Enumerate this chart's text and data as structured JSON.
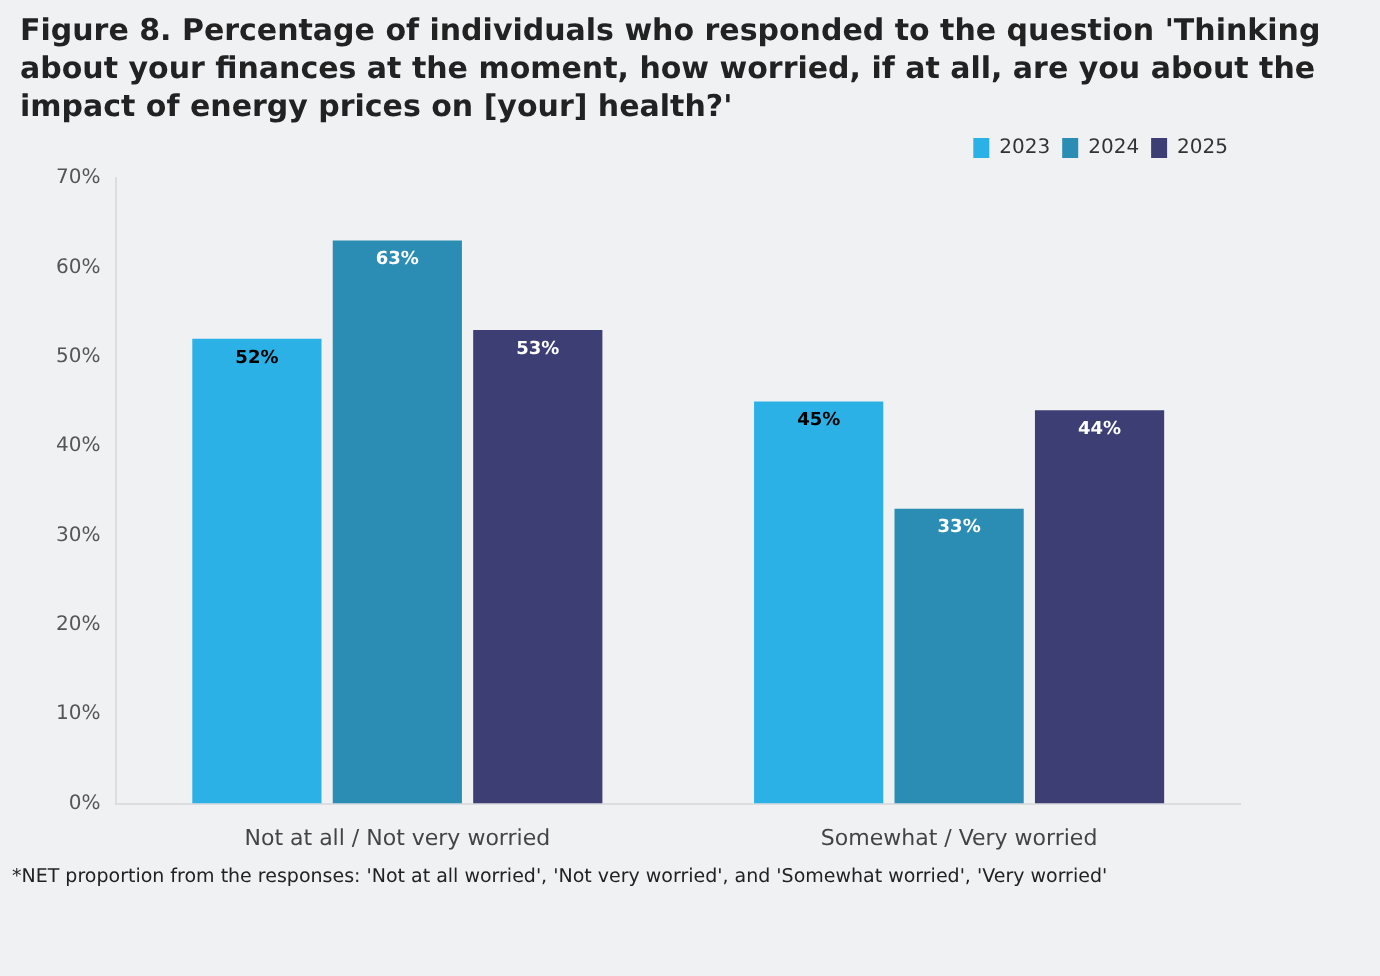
{
  "chart_data": {
    "type": "bar",
    "title": "Figure 8. Percentage of individuals who responded to the question 'Thinking about your finances at the moment, how worried, if at all, are you about the impact of energy prices on [your] health?'",
    "categories": [
      "Not at all / Not very worried",
      "Somewhat / Very worried"
    ],
    "series": [
      {
        "name": "2023",
        "color": "#2bb1e6",
        "values": [
          52,
          45
        ],
        "value_labels": [
          "52%",
          "45%"
        ]
      },
      {
        "name": "2024",
        "color": "#2b8db3",
        "values": [
          63,
          33
        ],
        "value_labels": [
          "63%",
          "33%"
        ]
      },
      {
        "name": "2025",
        "color": "#3d3e74",
        "values": [
          53,
          44
        ],
        "value_labels": [
          "53%",
          "44%"
        ]
      }
    ],
    "ylim": [
      0,
      70
    ],
    "yticks": [
      {
        "value": 0,
        "label": "0%"
      },
      {
        "value": 10,
        "label": "10%"
      },
      {
        "value": 20,
        "label": "20%"
      },
      {
        "value": 30,
        "label": "30%"
      },
      {
        "value": 40,
        "label": "40%"
      },
      {
        "value": 50,
        "label": "50%"
      },
      {
        "value": 60,
        "label": "60%"
      },
      {
        "value": 70,
        "label": "70%"
      }
    ],
    "grid": false,
    "legend": "top right",
    "annotations": [
      "*NET proportion from the responses: 'Not at all worried', 'Not very worried', and 'Somewhat worried', 'Very worried'"
    ]
  }
}
